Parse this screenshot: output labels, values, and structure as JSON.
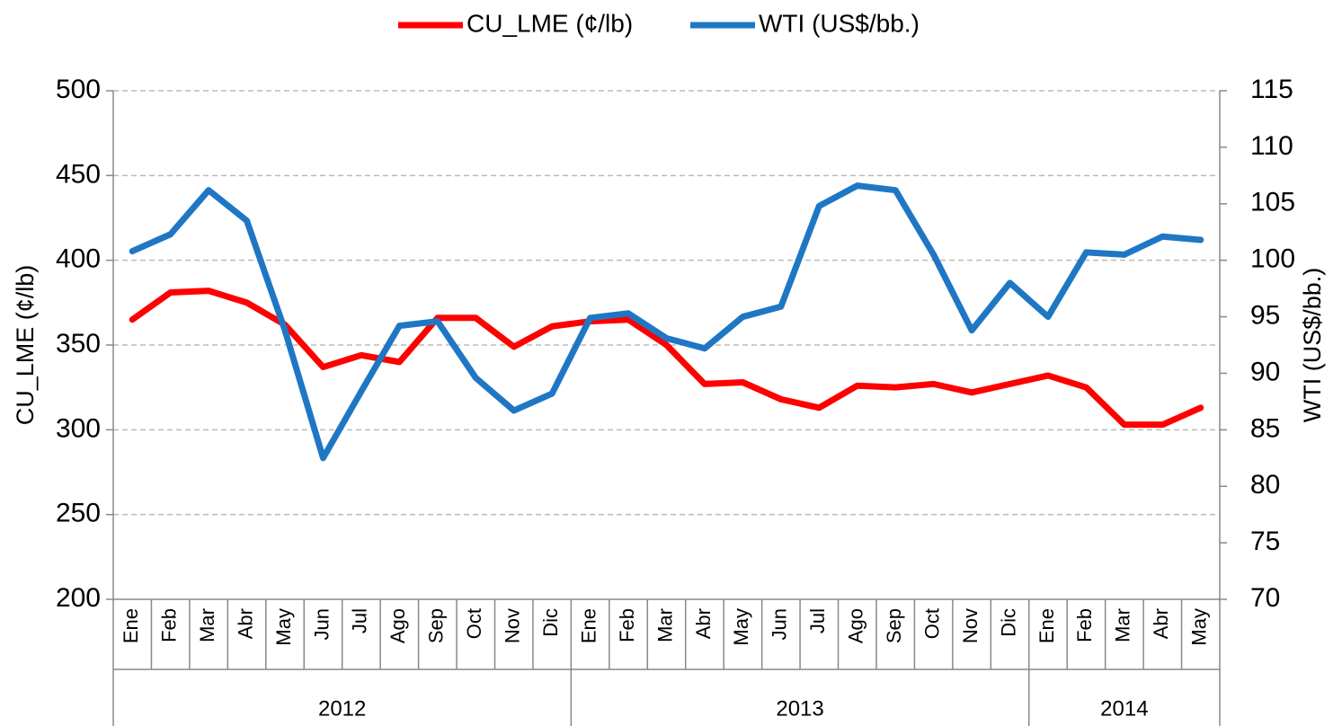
{
  "chart_data": {
    "type": "line",
    "y_title": "CU_LME (¢/lb)",
    "y2_title": "WTI (US$/bb.)",
    "categories": [
      "Ene",
      "Feb",
      "Mar",
      "Abr",
      "May",
      "Jun",
      "Jul",
      "Ago",
      "Sep",
      "Oct",
      "Nov",
      "Dic",
      "Ene",
      "Feb",
      "Mar",
      "Abr",
      "May",
      "Jun",
      "Jul",
      "Ago",
      "Sep",
      "Oct",
      "Nov",
      "Dic",
      "Ene",
      "Feb",
      "Mar",
      "Abr",
      "May"
    ],
    "groups": [
      {
        "label": "2012",
        "size": 12
      },
      {
        "label": "2013",
        "size": 12
      },
      {
        "label": "2014",
        "size": 5
      }
    ],
    "series": [
      {
        "name": "CU_LME (¢/lb)",
        "color": "#ff0000",
        "values": [
          365,
          381,
          382,
          375,
          362,
          337,
          344,
          340,
          366,
          366,
          349,
          361,
          364,
          365,
          350,
          327,
          328,
          318,
          313,
          326,
          325,
          327,
          322,
          327,
          332,
          325,
          303,
          303,
          313
        ]
      },
      {
        "name": "WTI (US$/bb.)",
        "color": "#1f77c4",
        "axis": "y2",
        "values": [
          100.8,
          102.3,
          106.2,
          103.5,
          93.8,
          82.5,
          88.4,
          94.2,
          94.6,
          89.6,
          86.7,
          88.2,
          94.9,
          95.3,
          93.1,
          92.2,
          95.0,
          95.9,
          104.8,
          106.6,
          106.2,
          100.5,
          93.8,
          98.0,
          95.0,
          100.7,
          100.5,
          102.1,
          101.8
        ]
      }
    ],
    "ylim": [
      200,
      500
    ],
    "yticks": [
      200,
      250,
      300,
      350,
      400,
      450,
      500
    ],
    "y2lim": [
      70,
      115
    ],
    "y2ticks": [
      70,
      75,
      80,
      85,
      90,
      95,
      100,
      105,
      110,
      115
    ],
    "grid": true,
    "legend": "top"
  }
}
